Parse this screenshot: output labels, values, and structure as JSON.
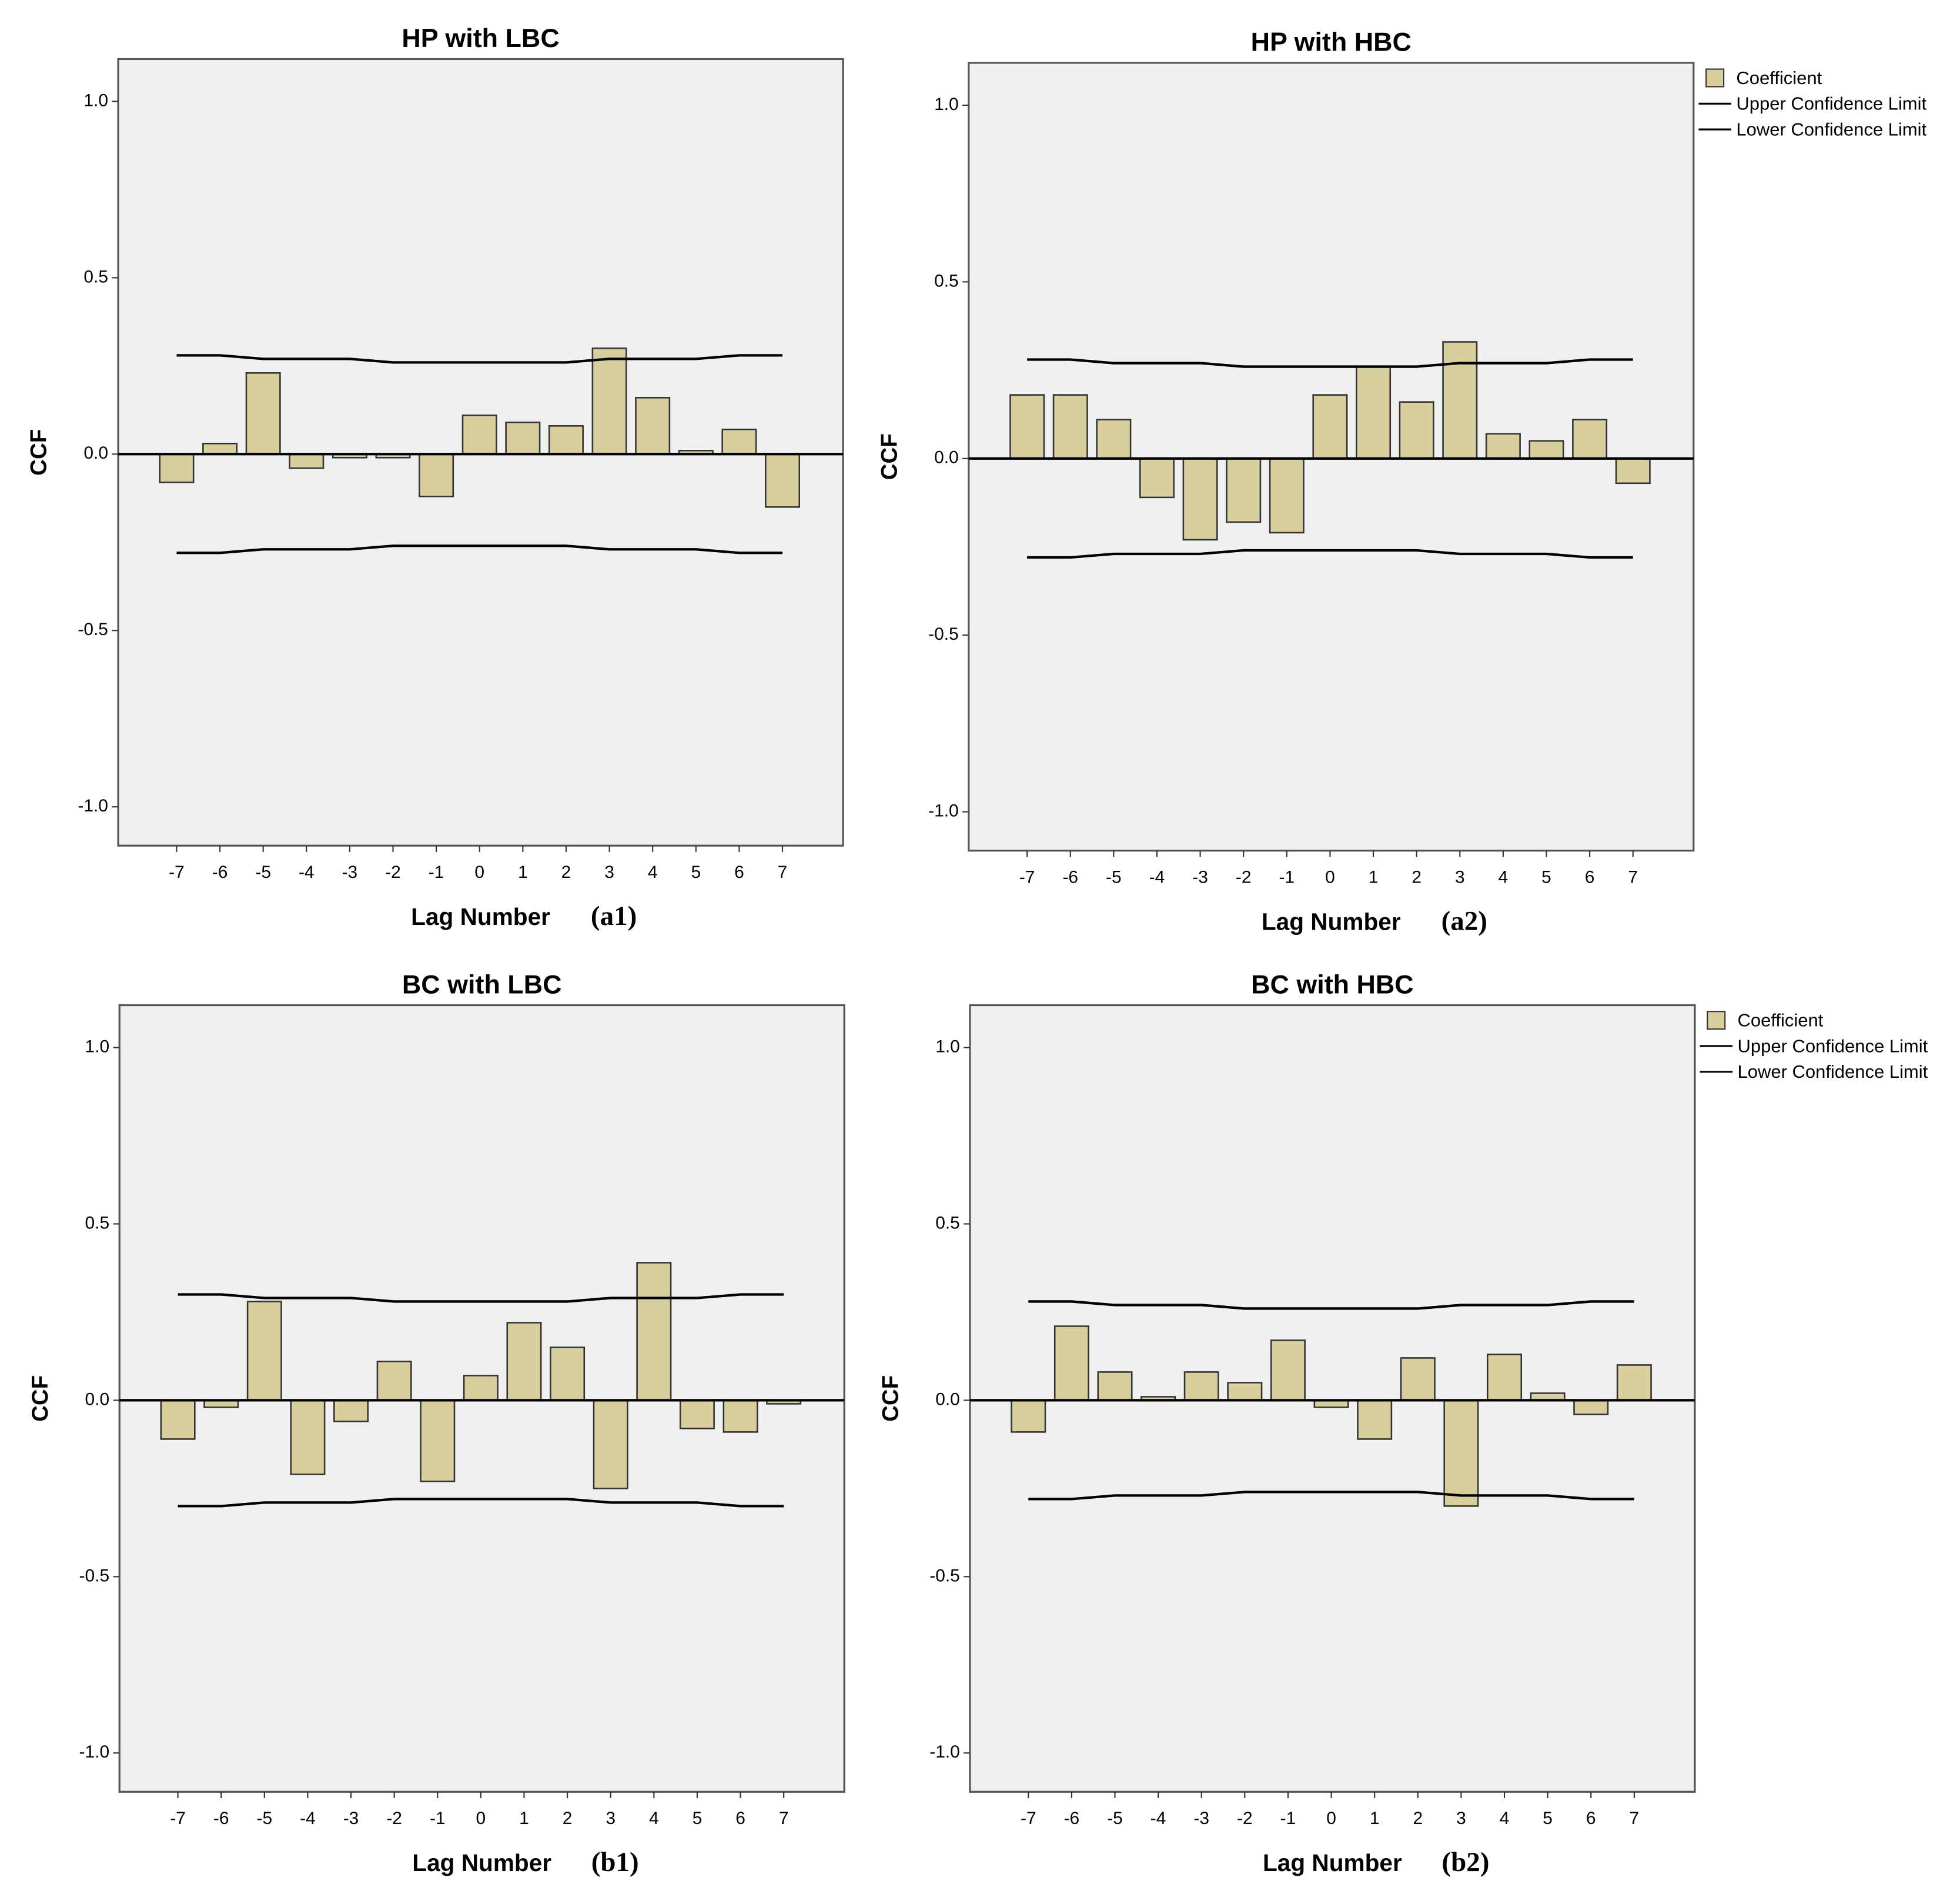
{
  "chart_data": [
    {
      "type": "bar",
      "title": "HP with LBC",
      "x_label": "Lag Number",
      "panel_label": "(a1)",
      "y_label": "CCF",
      "x": [
        -7,
        -6,
        -5,
        -4,
        -3,
        -2,
        -1,
        0,
        1,
        2,
        3,
        4,
        5,
        6,
        7
      ],
      "xlim": [
        -8.35,
        8.4
      ],
      "xticks": [
        -7,
        -6,
        -5,
        -4,
        -3,
        -2,
        -1,
        0,
        1,
        2,
        3,
        4,
        5,
        6,
        7
      ],
      "ylim": [
        -1.11,
        1.12
      ],
      "yticks": [
        {
          "value": 1.0,
          "label": "1.0"
        },
        0.5,
        {
          "value": 0.0,
          "label": "0.0"
        },
        -0.5,
        {
          "value": -1.0,
          "label": "-1.0"
        }
      ],
      "series": [
        {
          "color": "#d8cf9c",
          "values": [
            -0.08,
            0.03,
            0.23,
            -0.04,
            -0.01,
            -0.01,
            -0.12,
            0.11,
            0.09,
            0.08,
            0.3,
            0.16,
            0.01,
            0.07,
            -0.15
          ]
        },
        {
          "type": "line",
          "color": "#000000",
          "values": [
            0.28,
            0.28,
            0.27,
            0.27,
            0.27,
            0.26,
            0.26,
            0.26,
            0.26,
            0.26,
            0.27,
            0.27,
            0.27,
            0.28,
            0.28
          ]
        },
        {
          "type": "line",
          "color": "#000000",
          "values": [
            -0.28,
            -0.28,
            -0.27,
            -0.27,
            -0.27,
            -0.26,
            -0.26,
            -0.26,
            -0.26,
            -0.26,
            -0.27,
            -0.27,
            -0.27,
            -0.28,
            -0.28
          ]
        }
      ]
    },
    {
      "type": "bar",
      "title": "HP with HBC",
      "x_label": "Lag Number",
      "panel_label": "(a2)",
      "y_label": "CCF",
      "x": [
        -7,
        -6,
        -5,
        -4,
        -3,
        -2,
        -1,
        0,
        1,
        2,
        3,
        4,
        5,
        6,
        7
      ],
      "xlim": [
        -8.35,
        8.4
      ],
      "xticks": [
        -7,
        -6,
        -5,
        -4,
        -3,
        -2,
        -1,
        0,
        1,
        2,
        3,
        4,
        5,
        6,
        7
      ],
      "ylim": [
        -1.11,
        1.12
      ],
      "yticks": [
        {
          "value": 1.0,
          "label": "1.0"
        },
        0.5,
        {
          "value": 0.0,
          "label": "0.0"
        },
        -0.5,
        {
          "value": -1.0,
          "label": "-1.0"
        }
      ],
      "legend": "right",
      "series": [
        {
          "name": "Coefficient",
          "color": "#d8cf9c",
          "values": [
            0.18,
            0.18,
            0.11,
            -0.11,
            -0.23,
            -0.18,
            -0.21,
            0.18,
            0.26,
            0.16,
            0.33,
            0.07,
            0.05,
            0.11,
            -0.07
          ]
        },
        {
          "name": "Upper Confidence Limit",
          "type": "line",
          "color": "#000000",
          "values": [
            0.28,
            0.28,
            0.27,
            0.27,
            0.27,
            0.26,
            0.26,
            0.26,
            0.26,
            0.26,
            0.27,
            0.27,
            0.27,
            0.28,
            0.28
          ]
        },
        {
          "name": "Lower Confidence Limit",
          "type": "line",
          "color": "#000000",
          "values": [
            -0.28,
            -0.28,
            -0.27,
            -0.27,
            -0.27,
            -0.26,
            -0.26,
            -0.26,
            -0.26,
            -0.26,
            -0.27,
            -0.27,
            -0.27,
            -0.28,
            -0.28
          ]
        }
      ]
    },
    {
      "type": "bar",
      "title": "BC with LBC",
      "x_label": "Lag Number",
      "panel_label": "(b1)",
      "y_label": "CCF",
      "x": [
        -7,
        -6,
        -5,
        -4,
        -3,
        -2,
        -1,
        0,
        1,
        2,
        3,
        4,
        5,
        6,
        7
      ],
      "xlim": [
        -8.35,
        8.4
      ],
      "xticks": [
        -7,
        -6,
        -5,
        -4,
        -3,
        -2,
        -1,
        0,
        1,
        2,
        3,
        4,
        5,
        6,
        7
      ],
      "ylim": [
        -1.11,
        1.12
      ],
      "yticks": [
        {
          "value": 1.0,
          "label": "1.0"
        },
        0.5,
        {
          "value": 0.0,
          "label": "0.0"
        },
        -0.5,
        {
          "value": -1.0,
          "label": "-1.0"
        }
      ],
      "series": [
        {
          "color": "#d8cf9c",
          "values": [
            -0.11,
            -0.02,
            0.28,
            -0.21,
            -0.06,
            0.11,
            -0.23,
            0.07,
            0.22,
            0.15,
            -0.25,
            0.39,
            -0.08,
            -0.09,
            -0.01
          ]
        },
        {
          "type": "line",
          "color": "#000000",
          "values": [
            0.3,
            0.3,
            0.29,
            0.29,
            0.29,
            0.28,
            0.28,
            0.28,
            0.28,
            0.28,
            0.29,
            0.29,
            0.29,
            0.3,
            0.3
          ]
        },
        {
          "type": "line",
          "color": "#000000",
          "values": [
            -0.3,
            -0.3,
            -0.29,
            -0.29,
            -0.29,
            -0.28,
            -0.28,
            -0.28,
            -0.28,
            -0.28,
            -0.29,
            -0.29,
            -0.29,
            -0.3,
            -0.3
          ]
        }
      ]
    },
    {
      "type": "bar",
      "title": "BC with HBC",
      "x_label": "Lag Number",
      "panel_label": "(b2)",
      "y_label": "CCF",
      "x": [
        -7,
        -6,
        -5,
        -4,
        -3,
        -2,
        -1,
        0,
        1,
        2,
        3,
        4,
        5,
        6,
        7
      ],
      "xlim": [
        -8.35,
        8.4
      ],
      "xticks": [
        -7,
        -6,
        -5,
        -4,
        -3,
        -2,
        -1,
        0,
        1,
        2,
        3,
        4,
        5,
        6,
        7
      ],
      "ylim": [
        -1.11,
        1.12
      ],
      "yticks": [
        {
          "value": 1.0,
          "label": "1.0"
        },
        0.5,
        {
          "value": 0.0,
          "label": "0.0"
        },
        -0.5,
        {
          "value": -1.0,
          "label": "-1.0"
        }
      ],
      "legend": "right",
      "series": [
        {
          "name": "Coefficient",
          "color": "#d8cf9c",
          "values": [
            -0.09,
            0.21,
            0.08,
            0.01,
            0.08,
            0.05,
            0.17,
            -0.02,
            -0.11,
            0.12,
            -0.3,
            0.13,
            0.02,
            -0.04,
            0.1
          ]
        },
        {
          "name": "Upper Confidence Limit",
          "type": "line",
          "color": "#000000",
          "values": [
            0.28,
            0.28,
            0.27,
            0.27,
            0.27,
            0.26,
            0.26,
            0.26,
            0.26,
            0.26,
            0.27,
            0.27,
            0.27,
            0.28,
            0.28
          ]
        },
        {
          "name": "Lower Confidence Limit",
          "type": "line",
          "color": "#000000",
          "values": [
            -0.28,
            -0.28,
            -0.27,
            -0.27,
            -0.27,
            -0.26,
            -0.26,
            -0.26,
            -0.26,
            -0.26,
            -0.27,
            -0.27,
            -0.27,
            -0.28,
            -0.28
          ]
        }
      ]
    }
  ]
}
